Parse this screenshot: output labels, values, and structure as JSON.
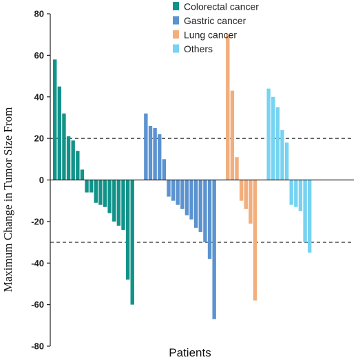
{
  "chart_data": {
    "type": "bar",
    "title": "",
    "xlabel": "Patients",
    "ylabel": "Maximum Change in Tumor Size From",
    "ylim": [
      -80,
      80
    ],
    "yticks": [
      80,
      60,
      40,
      20,
      0,
      -20,
      -40,
      -60,
      -80
    ],
    "reference_lines": [
      20,
      -30
    ],
    "legend_position": "top-center",
    "series": [
      {
        "name": "Colorectal cancer",
        "color": "#12938A",
        "values": [
          58,
          45,
          32,
          21,
          19,
          14,
          5,
          -6,
          -6,
          -11,
          -12,
          -13,
          -16,
          -20,
          -22,
          -24,
          -48,
          -60
        ]
      },
      {
        "name": "Gastric cancer",
        "color": "#5B93D0",
        "values": [
          32,
          26,
          25,
          22,
          10,
          -8,
          -10,
          -12,
          -14,
          -17,
          -19,
          -23,
          -25,
          -30,
          -38,
          -67
        ]
      },
      {
        "name": "Lung cancer",
        "color": "#F2AE7C",
        "values": [
          70,
          43,
          11,
          -10,
          -14,
          -21,
          -58
        ]
      },
      {
        "name": "Others",
        "color": "#76D3F2",
        "values": [
          44,
          40,
          35,
          24,
          18,
          -12,
          -13,
          -15,
          -30,
          -35
        ]
      }
    ]
  }
}
